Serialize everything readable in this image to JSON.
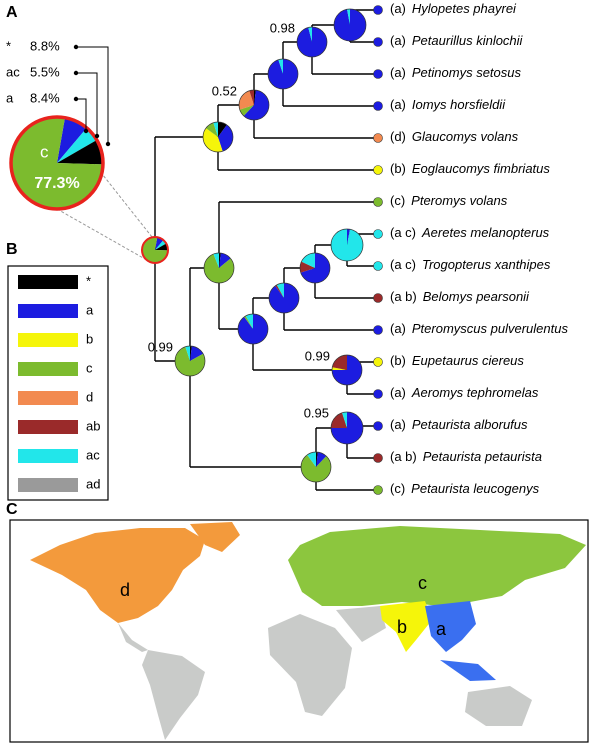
{
  "panel_a": {
    "label": "A",
    "pie": {
      "names": [
        "*",
        "ac",
        "a",
        "c"
      ],
      "values": [
        8.8,
        5.5,
        8.4,
        77.3
      ],
      "value_labels": [
        "8.8%",
        "5.5%",
        "8.4%",
        "77.3%"
      ]
    }
  },
  "panel_b": {
    "label": "B",
    "items": [
      {
        "name": "*",
        "color": "#000000"
      },
      {
        "name": "a",
        "color": "#1c1ce0"
      },
      {
        "name": "b",
        "color": "#f5f50a"
      },
      {
        "name": "c",
        "color": "#7cbb2e"
      },
      {
        "name": "d",
        "color": "#f28a50"
      },
      {
        "name": "ab",
        "color": "#9a2a2a"
      },
      {
        "name": "ac",
        "color": "#22e6ea"
      },
      {
        "name": "ad",
        "color": "#9a9a9a"
      }
    ]
  },
  "tree": {
    "tips": [
      {
        "area": "(a)",
        "species": "Hylopetes phayrei",
        "color": "#1c1ce0"
      },
      {
        "area": "(a)",
        "species": "Petaurillus kinlochii",
        "color": "#1c1ce0"
      },
      {
        "area": "(a)",
        "species": "Petinomys setosus",
        "color": "#1c1ce0"
      },
      {
        "area": "(a)",
        "species": "Iomys horsfieldii",
        "color": "#1c1ce0"
      },
      {
        "area": "(d)",
        "species": "Glaucomys volans",
        "color": "#f28a50"
      },
      {
        "area": "(b)",
        "species": "Eoglaucomys fimbriatus",
        "color": "#f5f50a"
      },
      {
        "area": "(c)",
        "species": "Pteromys volans",
        "color": "#7cbb2e"
      },
      {
        "area": "(a c)",
        "species": "Aeretes melanopterus",
        "color": "#22e6ea"
      },
      {
        "area": "(a c)",
        "species": "Trogopterus xanthipes",
        "color": "#22e6ea"
      },
      {
        "area": "(a b)",
        "species": "Belomys pearsonii",
        "color": "#9a2a2a"
      },
      {
        "area": "(a)",
        "species": "Pteromyscus pulverulentus",
        "color": "#1c1ce0"
      },
      {
        "area": "(b)",
        "species": "Eupetaurus ciereus",
        "color": "#f5f50a"
      },
      {
        "area": "(a)",
        "species": "Aeromys tephromelas",
        "color": "#1c1ce0"
      },
      {
        "area": "(a)",
        "species": "Petaurista alborufus",
        "color": "#1c1ce0"
      },
      {
        "area": "(a b)",
        "species": "Petaurista petaurista",
        "color": "#9a2a2a"
      },
      {
        "area": "(c)",
        "species": "Petaurista leucogenys",
        "color": "#7cbb2e"
      }
    ],
    "nodes": [
      {
        "pie": [
          0,
          97,
          0,
          0,
          0,
          0,
          3,
          0
        ]
      },
      {
        "pie": [
          0,
          96,
          0,
          0,
          0,
          0,
          4,
          0
        ],
        "support": 0.98
      },
      {
        "pie": [
          0,
          95,
          0,
          0,
          0,
          0,
          5,
          0
        ]
      },
      {
        "pie": [
          2,
          60,
          0,
          8,
          25,
          5,
          0,
          0
        ],
        "support": 0.52
      },
      {
        "pie": [
          10,
          35,
          40,
          10,
          0,
          0,
          5,
          0
        ]
      },
      {
        "pie": [
          2,
          12,
          0,
          80,
          0,
          0,
          6,
          0
        ]
      },
      {
        "pie": [
          2,
          15,
          0,
          78,
          0,
          0,
          5,
          0
        ],
        "support": 0.99
      },
      {
        "pie": [
          0,
          90,
          0,
          2,
          0,
          0,
          8,
          0
        ]
      },
      {
        "pie": [
          0,
          90,
          0,
          0,
          0,
          2,
          8,
          0
        ]
      },
      {
        "pie": [
          0,
          70,
          0,
          0,
          0,
          12,
          18,
          0
        ]
      },
      {
        "pie": [
          0,
          3,
          0,
          0,
          0,
          0,
          97,
          0
        ]
      },
      {
        "pie": [
          0,
          75,
          3,
          0,
          0,
          22,
          0,
          0
        ],
        "support": 0.99
      },
      {
        "pie": [
          0,
          75,
          0,
          0,
          0,
          20,
          5,
          0
        ],
        "support": 0.95
      },
      {
        "pie": [
          2,
          10,
          0,
          78,
          0,
          0,
          10,
          0
        ]
      }
    ]
  },
  "map": {
    "label": "C",
    "regions": [
      "d",
      "c",
      "b",
      "a"
    ]
  }
}
